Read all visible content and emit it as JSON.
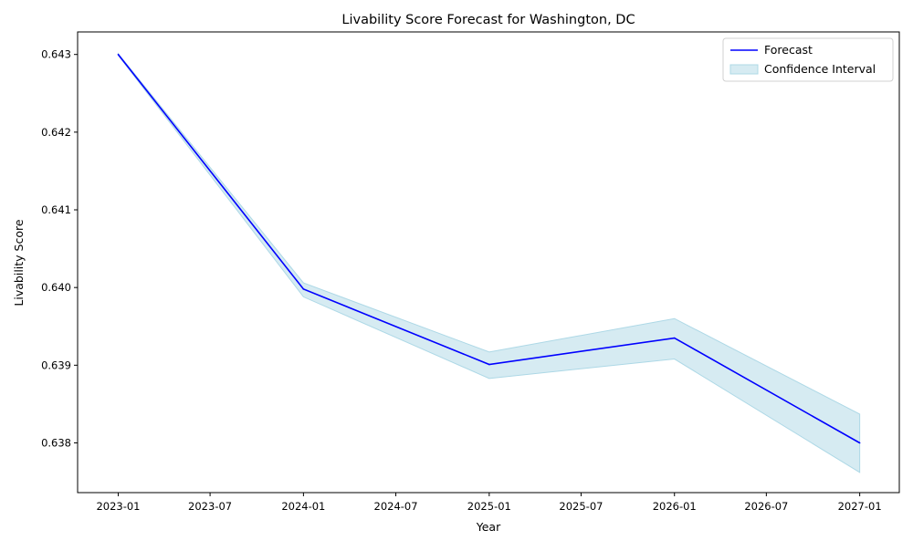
{
  "chart_data": {
    "type": "line",
    "title": "Livability Score Forecast for Washington, DC",
    "xlabel": "Year",
    "ylabel": "Livability Score",
    "x": [
      "2023-01-01",
      "2024-01-01",
      "2025-01-01",
      "2026-01-01",
      "2027-01-01"
    ],
    "series": [
      {
        "name": "Forecast",
        "values": [
          0.643,
          0.63998,
          0.63901,
          0.63935,
          0.638
        ],
        "color": "#0000ff"
      }
    ],
    "confidence_interval": {
      "name": "Confidence Interval",
      "lower": [
        0.64299,
        0.63988,
        0.63883,
        0.63908,
        0.63762
      ],
      "upper": [
        0.64301,
        0.64006,
        0.63917,
        0.6396,
        0.63837
      ],
      "color": "#add8e6"
    },
    "xticks": [
      "2023-01",
      "2023-07",
      "2024-01",
      "2024-07",
      "2025-01",
      "2025-07",
      "2026-01",
      "2026-07",
      "2027-01"
    ],
    "xtick_dates": [
      "2023-01-01",
      "2023-07-01",
      "2024-01-01",
      "2024-07-01",
      "2025-01-01",
      "2025-07-01",
      "2026-01-01",
      "2026-07-01",
      "2027-01-01"
    ],
    "yticks": [
      "0.638",
      "0.639",
      "0.640",
      "0.641",
      "0.642",
      "0.643"
    ],
    "ylim": [
      0.63736,
      0.64329
    ],
    "xlim": [
      "2022-10-13",
      "2027-03-20"
    ],
    "grid": false,
    "legend_position": "top-right"
  }
}
